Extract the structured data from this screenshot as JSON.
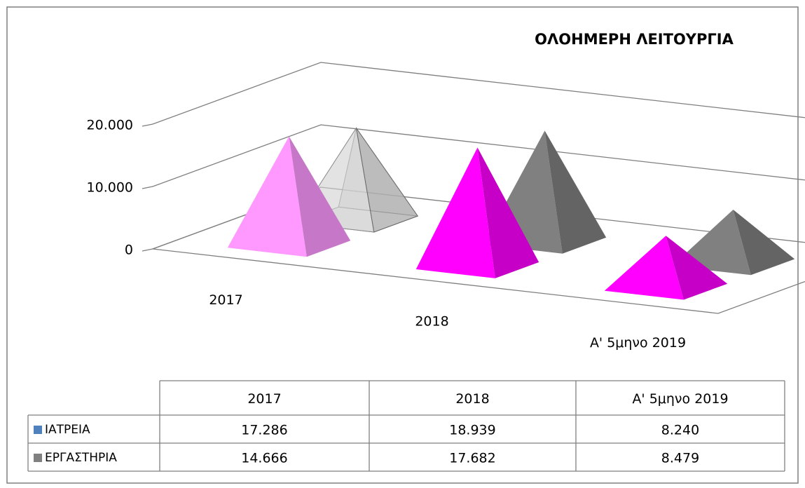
{
  "chart_data": {
    "type": "pyramid3d",
    "title": "ΟΛΟΗΜΕΡΗ ΛΕΙΤΟΥΡΓΙΑ",
    "categories": [
      "2017",
      "2018",
      "Α' 5μηνο 2019"
    ],
    "series": [
      {
        "name": "ΙΑΤΡΕΙΑ",
        "color": "#4f81bd",
        "point_colors": [
          "#ff99ff",
          "#ff00ff",
          "#ff00ff"
        ],
        "values": [
          17286,
          18939,
          8240
        ],
        "value_labels": [
          "17.286",
          "18.939",
          "8.240"
        ]
      },
      {
        "name": "ΕΡΓΑΣΤΗΡΙΑ",
        "color": "#808080",
        "point_colors": [
          "#d0d0d0",
          "#808080",
          "#808080"
        ],
        "values": [
          14666,
          17682,
          8479
        ],
        "value_labels": [
          "14.666",
          "17.682",
          "8.479"
        ]
      }
    ],
    "ylim": [
      0,
      20000
    ],
    "yticks": [
      0,
      {
        "value": 10000,
        "label": "10.000"
      },
      {
        "value": 20000,
        "label": "20.000"
      }
    ],
    "grid": true,
    "data_table": true
  }
}
